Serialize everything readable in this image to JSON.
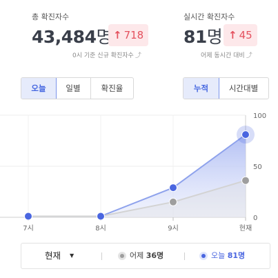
{
  "total": {
    "label": "총 확진자수",
    "value": "43,484",
    "unit": "명",
    "delta": "718",
    "note": "0시 기준 신규 확진자수"
  },
  "realtime": {
    "label": "실시간 확진자수",
    "value": "81",
    "unit": "명",
    "delta": "45",
    "note": "어제 동시간 대비"
  },
  "period_tabs": [
    {
      "label": "오늘",
      "active": true
    },
    {
      "label": "일별",
      "active": false
    },
    {
      "label": "확진율",
      "active": false
    }
  ],
  "mode_tabs": [
    {
      "label": "누적",
      "active": true
    },
    {
      "label": "시간대별",
      "active": false
    }
  ],
  "colors": {
    "today": "#4a66e0",
    "yesterday": "#9e9e9e",
    "up": "#e4515e"
  },
  "icons": {
    "delta": "arrow-up-icon",
    "note": "curved-arrow-icon",
    "dropdown": "caret-down-icon"
  },
  "chart_data": {
    "type": "line",
    "categories": [
      "7시",
      "8시",
      "9시",
      "현재"
    ],
    "series": [
      {
        "name": "어제",
        "values": [
          1,
          1,
          15,
          36
        ]
      },
      {
        "name": "오늘",
        "values": [
          1,
          1,
          29,
          81
        ]
      }
    ],
    "ylim": [
      0,
      100
    ],
    "yticks": [
      "0",
      "50",
      "100"
    ],
    "grid": true,
    "fill": "area"
  },
  "legend": {
    "selector_label": "현재",
    "yesterday_label": "어제",
    "yesterday_value": "36명",
    "today_label": "오늘",
    "today_value": "81명"
  }
}
